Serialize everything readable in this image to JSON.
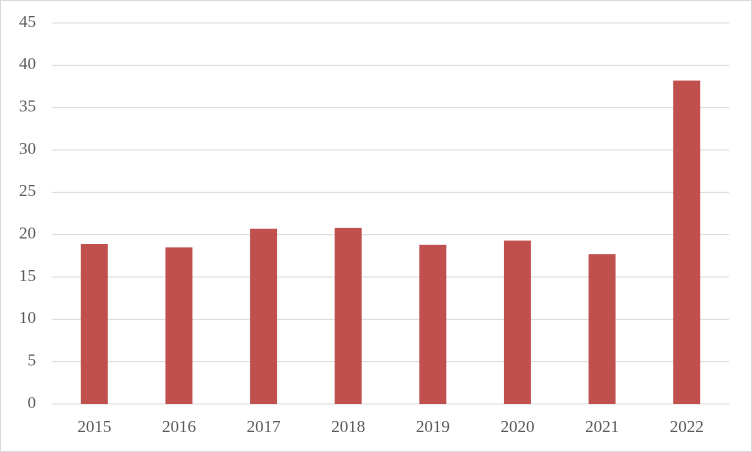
{
  "chart_data": {
    "type": "bar",
    "categories": [
      "2015",
      "2016",
      "2017",
      "2018",
      "2019",
      "2020",
      "2021",
      "2022"
    ],
    "values": [
      18.9,
      18.5,
      20.7,
      20.8,
      18.8,
      19.3,
      17.7,
      38.2
    ],
    "color": "#c0504d",
    "ylim": [
      0,
      45
    ],
    "yticks": [
      0,
      5,
      10,
      15,
      20,
      25,
      30,
      35,
      40,
      45
    ],
    "grid": true
  }
}
